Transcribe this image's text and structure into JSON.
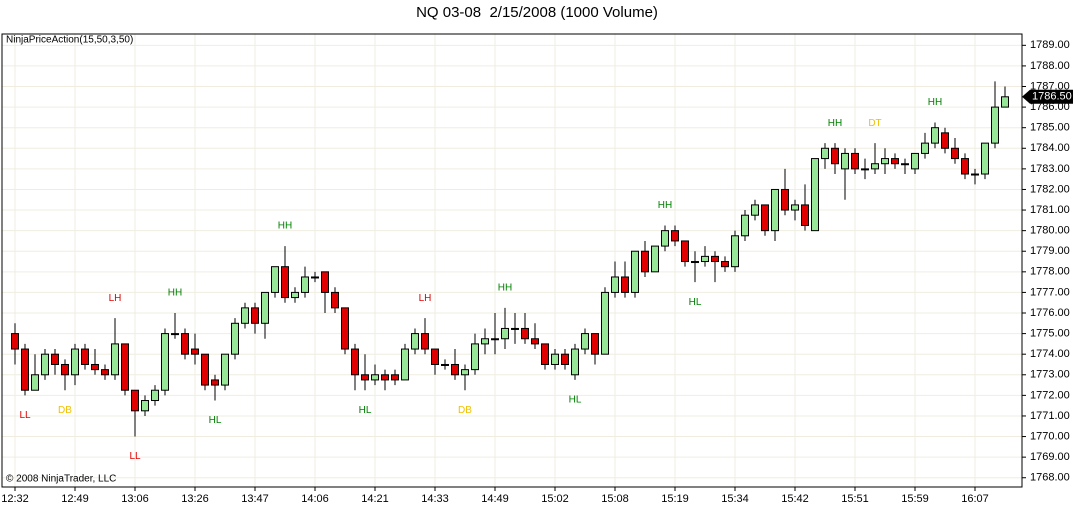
{
  "chart_data": {
    "type": "candlestick",
    "title": "NQ 03-08  2/15/2008 (1000 Volume)",
    "indicator": "NinjaPriceAction(15,50,3,50)",
    "copyright": "© 2008 NinjaTrader, LLC",
    "categories": [
      "12:32",
      null,
      null,
      null,
      null,
      null,
      "12:49",
      null,
      null,
      null,
      null,
      null,
      "13:06",
      null,
      null,
      null,
      null,
      null,
      "13:26",
      null,
      null,
      null,
      null,
      null,
      "13:47",
      null,
      null,
      null,
      null,
      null,
      "14:06",
      null,
      null,
      null,
      null,
      null,
      "14:21",
      null,
      null,
      null,
      null,
      null,
      "14:33",
      null,
      null,
      null,
      null,
      null,
      "14:49",
      null,
      null,
      null,
      null,
      null,
      "15:02",
      null,
      null,
      null,
      null,
      null,
      "15:08",
      null,
      null,
      null,
      null,
      null,
      "15:19",
      null,
      null,
      null,
      null,
      null,
      "15:34",
      null,
      null,
      null,
      null,
      null,
      "15:42",
      null,
      null,
      null,
      null,
      null,
      "15:51",
      null,
      null,
      null,
      null,
      null,
      "15:59",
      null,
      null,
      null,
      null,
      null,
      "16:07",
      null,
      null,
      null
    ],
    "open": [
      1775.0,
      1774.25,
      1772.25,
      1773.0,
      1774.0,
      1773.5,
      1773.0,
      1774.25,
      1773.5,
      1773.25,
      1773.0,
      1774.5,
      1772.25,
      1771.25,
      1771.75,
      1772.25,
      1775.0,
      1775.0,
      1774.25,
      1774.0,
      1772.75,
      1772.5,
      1774.0,
      1775.5,
      1776.25,
      1775.5,
      1777.0,
      1778.25,
      1776.75,
      1777.0,
      1777.75,
      1778.0,
      1777.0,
      1776.25,
      1774.25,
      1773.0,
      1772.75,
      1773.0,
      1773.0,
      1772.75,
      1774.25,
      1775.0,
      1774.25,
      1773.5,
      1773.5,
      1773.0,
      1773.25,
      1774.5,
      1774.75,
      1774.75,
      1775.25,
      1775.25,
      1774.75,
      1774.5,
      1773.5,
      1774.0,
      1773.0,
      1774.25,
      1775.0,
      1774.0,
      1777.0,
      1777.75,
      1777.0,
      1779.0,
      1778.0,
      1779.25,
      1780.0,
      1779.5,
      1778.5,
      1778.5,
      1778.75,
      1778.5,
      1778.25,
      1779.75,
      1780.75,
      1781.25,
      1780.0,
      1782.0,
      1781.0,
      1781.25,
      1780.0,
      1783.5,
      1784.0,
      1783.0,
      1783.75,
      1783.0,
      1783.0,
      1783.25,
      1783.5,
      1783.25,
      1783.0,
      1783.75,
      1784.25,
      1784.75,
      1784.0,
      1783.5,
      1782.75,
      1782.75,
      1784.25,
      1786.0
    ],
    "high": [
      1775.5,
      1774.5,
      1774.0,
      1774.25,
      1774.25,
      1773.75,
      1774.5,
      1774.5,
      1774.25,
      1773.5,
      1775.75,
      1774.5,
      1772.25,
      1772.0,
      1772.5,
      1775.25,
      1776.0,
      1775.25,
      1775.0,
      1774.0,
      1773.0,
      1774.0,
      1775.75,
      1776.5,
      1776.5,
      1777.0,
      1778.25,
      1779.25,
      1777.25,
      1778.25,
      1778.0,
      1778.0,
      1777.25,
      1776.25,
      1774.5,
      1774.0,
      1773.5,
      1773.25,
      1773.25,
      1774.5,
      1775.25,
      1775.75,
      1774.25,
      1773.75,
      1774.25,
      1773.5,
      1775.0,
      1775.25,
      1776.0,
      1776.25,
      1776.0,
      1776.0,
      1775.5,
      1774.5,
      1774.25,
      1774.25,
      1774.5,
      1775.25,
      1775.0,
      1777.25,
      1778.5,
      1778.5,
      1779.0,
      1779.5,
      1779.25,
      1780.25,
      1780.25,
      1779.5,
      1779.0,
      1779.25,
      1779.0,
      1778.75,
      1780.0,
      1781.0,
      1781.5,
      1781.25,
      1782.0,
      1783.0,
      1781.5,
      1782.25,
      1783.5,
      1784.25,
      1784.25,
      1784.0,
      1784.0,
      1783.5,
      1784.25,
      1784.0,
      1783.75,
      1783.5,
      1783.75,
      1784.75,
      1785.25,
      1785.0,
      1784.5,
      1783.75,
      1783.0,
      1784.25,
      1787.25,
      1787.0
    ],
    "low": [
      1773.5,
      1772.0,
      1772.25,
      1772.75,
      1773.0,
      1772.25,
      1772.5,
      1773.25,
      1773.0,
      1772.75,
      1772.75,
      1772.0,
      1770.0,
      1771.0,
      1771.5,
      1772.0,
      1774.75,
      1773.75,
      1773.5,
      1772.25,
      1771.75,
      1772.25,
      1773.75,
      1775.25,
      1775.0,
      1774.75,
      1776.75,
      1776.5,
      1776.5,
      1776.75,
      1777.5,
      1776.0,
      1776.0,
      1774.0,
      1772.25,
      1772.25,
      1772.5,
      1772.25,
      1772.5,
      1772.75,
      1774.0,
      1774.0,
      1773.0,
      1773.25,
      1772.75,
      1772.25,
      1773.0,
      1774.0,
      1774.0,
      1774.25,
      1774.5,
      1774.5,
      1774.25,
      1773.25,
      1773.25,
      1773.25,
      1772.75,
      1774.0,
      1773.5,
      1774.0,
      1776.75,
      1776.75,
      1776.75,
      1777.75,
      1778.0,
      1779.0,
      1779.25,
      1778.25,
      1777.5,
      1778.25,
      1777.5,
      1778.0,
      1778.0,
      1779.5,
      1780.5,
      1779.75,
      1779.5,
      1780.75,
      1780.5,
      1780.0,
      1780.0,
      1783.0,
      1782.75,
      1781.5,
      1782.75,
      1782.5,
      1782.75,
      1782.75,
      1783.0,
      1782.75,
      1782.75,
      1783.5,
      1784.0,
      1783.75,
      1783.25,
      1782.5,
      1782.25,
      1782.5,
      1784.0,
      1786.0
    ],
    "close": [
      1774.25,
      1772.25,
      1773.0,
      1774.0,
      1773.5,
      1773.0,
      1774.25,
      1773.5,
      1773.25,
      1773.0,
      1774.5,
      1772.25,
      1771.25,
      1771.75,
      1772.25,
      1775.0,
      1775.0,
      1774.0,
      1774.0,
      1772.5,
      1772.5,
      1774.0,
      1775.5,
      1776.25,
      1775.5,
      1777.0,
      1778.25,
      1776.75,
      1777.0,
      1777.75,
      1777.75,
      1777.0,
      1776.25,
      1774.25,
      1773.0,
      1772.75,
      1773.0,
      1772.75,
      1772.75,
      1774.25,
      1775.0,
      1774.25,
      1773.5,
      1773.5,
      1773.0,
      1773.25,
      1774.5,
      1774.75,
      1774.75,
      1775.25,
      1775.25,
      1774.75,
      1774.5,
      1773.5,
      1774.0,
      1773.5,
      1774.25,
      1775.0,
      1774.0,
      1777.0,
      1777.75,
      1777.0,
      1779.0,
      1778.0,
      1779.25,
      1780.0,
      1779.5,
      1778.5,
      1778.5,
      1778.75,
      1778.5,
      1778.25,
      1779.75,
      1780.75,
      1781.25,
      1780.0,
      1782.0,
      1781.0,
      1781.25,
      1780.25,
      1783.5,
      1784.0,
      1783.25,
      1783.75,
      1783.0,
      1783.0,
      1783.25,
      1783.5,
      1783.25,
      1783.25,
      1783.75,
      1784.25,
      1785.0,
      1784.0,
      1783.5,
      1782.75,
      1782.75,
      1784.25,
      1786.0,
      1786.5
    ],
    "up_color": "#98e698",
    "down_color": "#e00000",
    "annotations": [
      {
        "text": "LL",
        "bar": 1,
        "position": "below",
        "color": "#e00000"
      },
      {
        "text": "DB",
        "bar": 5,
        "position": "below",
        "color": "#f0c000"
      },
      {
        "text": "LH",
        "bar": 10,
        "position": "above",
        "color": "#e00000"
      },
      {
        "text": "LL",
        "bar": 12,
        "position": "below",
        "color": "#e00000"
      },
      {
        "text": "HH",
        "bar": 16,
        "position": "above",
        "color": "#008000"
      },
      {
        "text": "HL",
        "bar": 20,
        "position": "below",
        "color": "#008000"
      },
      {
        "text": "HH",
        "bar": 27,
        "position": "above",
        "color": "#008000"
      },
      {
        "text": "HL",
        "bar": 35,
        "position": "below",
        "color": "#008000"
      },
      {
        "text": "LH",
        "bar": 41,
        "position": "above",
        "color": "#e00000"
      },
      {
        "text": "DB",
        "bar": 45,
        "position": "below",
        "color": "#f0c000"
      },
      {
        "text": "HH",
        "bar": 49,
        "position": "above",
        "color": "#008000"
      },
      {
        "text": "HL",
        "bar": 56,
        "position": "below",
        "color": "#008000"
      },
      {
        "text": "HH",
        "bar": 65,
        "position": "above",
        "color": "#008000"
      },
      {
        "text": "HL",
        "bar": 68,
        "position": "below",
        "color": "#008000"
      },
      {
        "text": "HH",
        "bar": 82,
        "position": "above",
        "color": "#008000"
      },
      {
        "text": "DT",
        "bar": 86,
        "position": "above",
        "color": "#f0c000"
      },
      {
        "text": "HH",
        "bar": 92,
        "position": "above",
        "color": "#008000"
      }
    ],
    "last_price": {
      "value": 1786.5,
      "label": "1786.50"
    },
    "ylim": [
      1767.55,
      1789.55
    ],
    "yticks": [
      {
        "value": 1768,
        "label": "1768.00"
      },
      {
        "value": 1769,
        "label": "1769.00"
      },
      {
        "value": 1770,
        "label": "1770.00"
      },
      {
        "value": 1771,
        "label": "1771.00"
      },
      {
        "value": 1772,
        "label": "1772.00"
      },
      {
        "value": 1773,
        "label": "1773.00"
      },
      {
        "value": 1774,
        "label": "1774.00"
      },
      {
        "value": 1775,
        "label": "1775.00"
      },
      {
        "value": 1776,
        "label": "1776.00"
      },
      {
        "value": 1777,
        "label": "1777.00"
      },
      {
        "value": 1778,
        "label": "1778.00"
      },
      {
        "value": 1779,
        "label": "1779.00"
      },
      {
        "value": 1780,
        "label": "1780.00"
      },
      {
        "value": 1781,
        "label": "1781.00"
      },
      {
        "value": 1782,
        "label": "1782.00"
      },
      {
        "value": 1783,
        "label": "1783.00"
      },
      {
        "value": 1784,
        "label": "1784.00"
      },
      {
        "value": 1785,
        "label": "1785.00"
      },
      {
        "value": 1786,
        "label": "1786.00"
      },
      {
        "value": 1787,
        "label": "1787.00"
      },
      {
        "value": 1788,
        "label": "1788.00"
      },
      {
        "value": 1789,
        "label": "1789.00"
      }
    ],
    "grid": true
  }
}
